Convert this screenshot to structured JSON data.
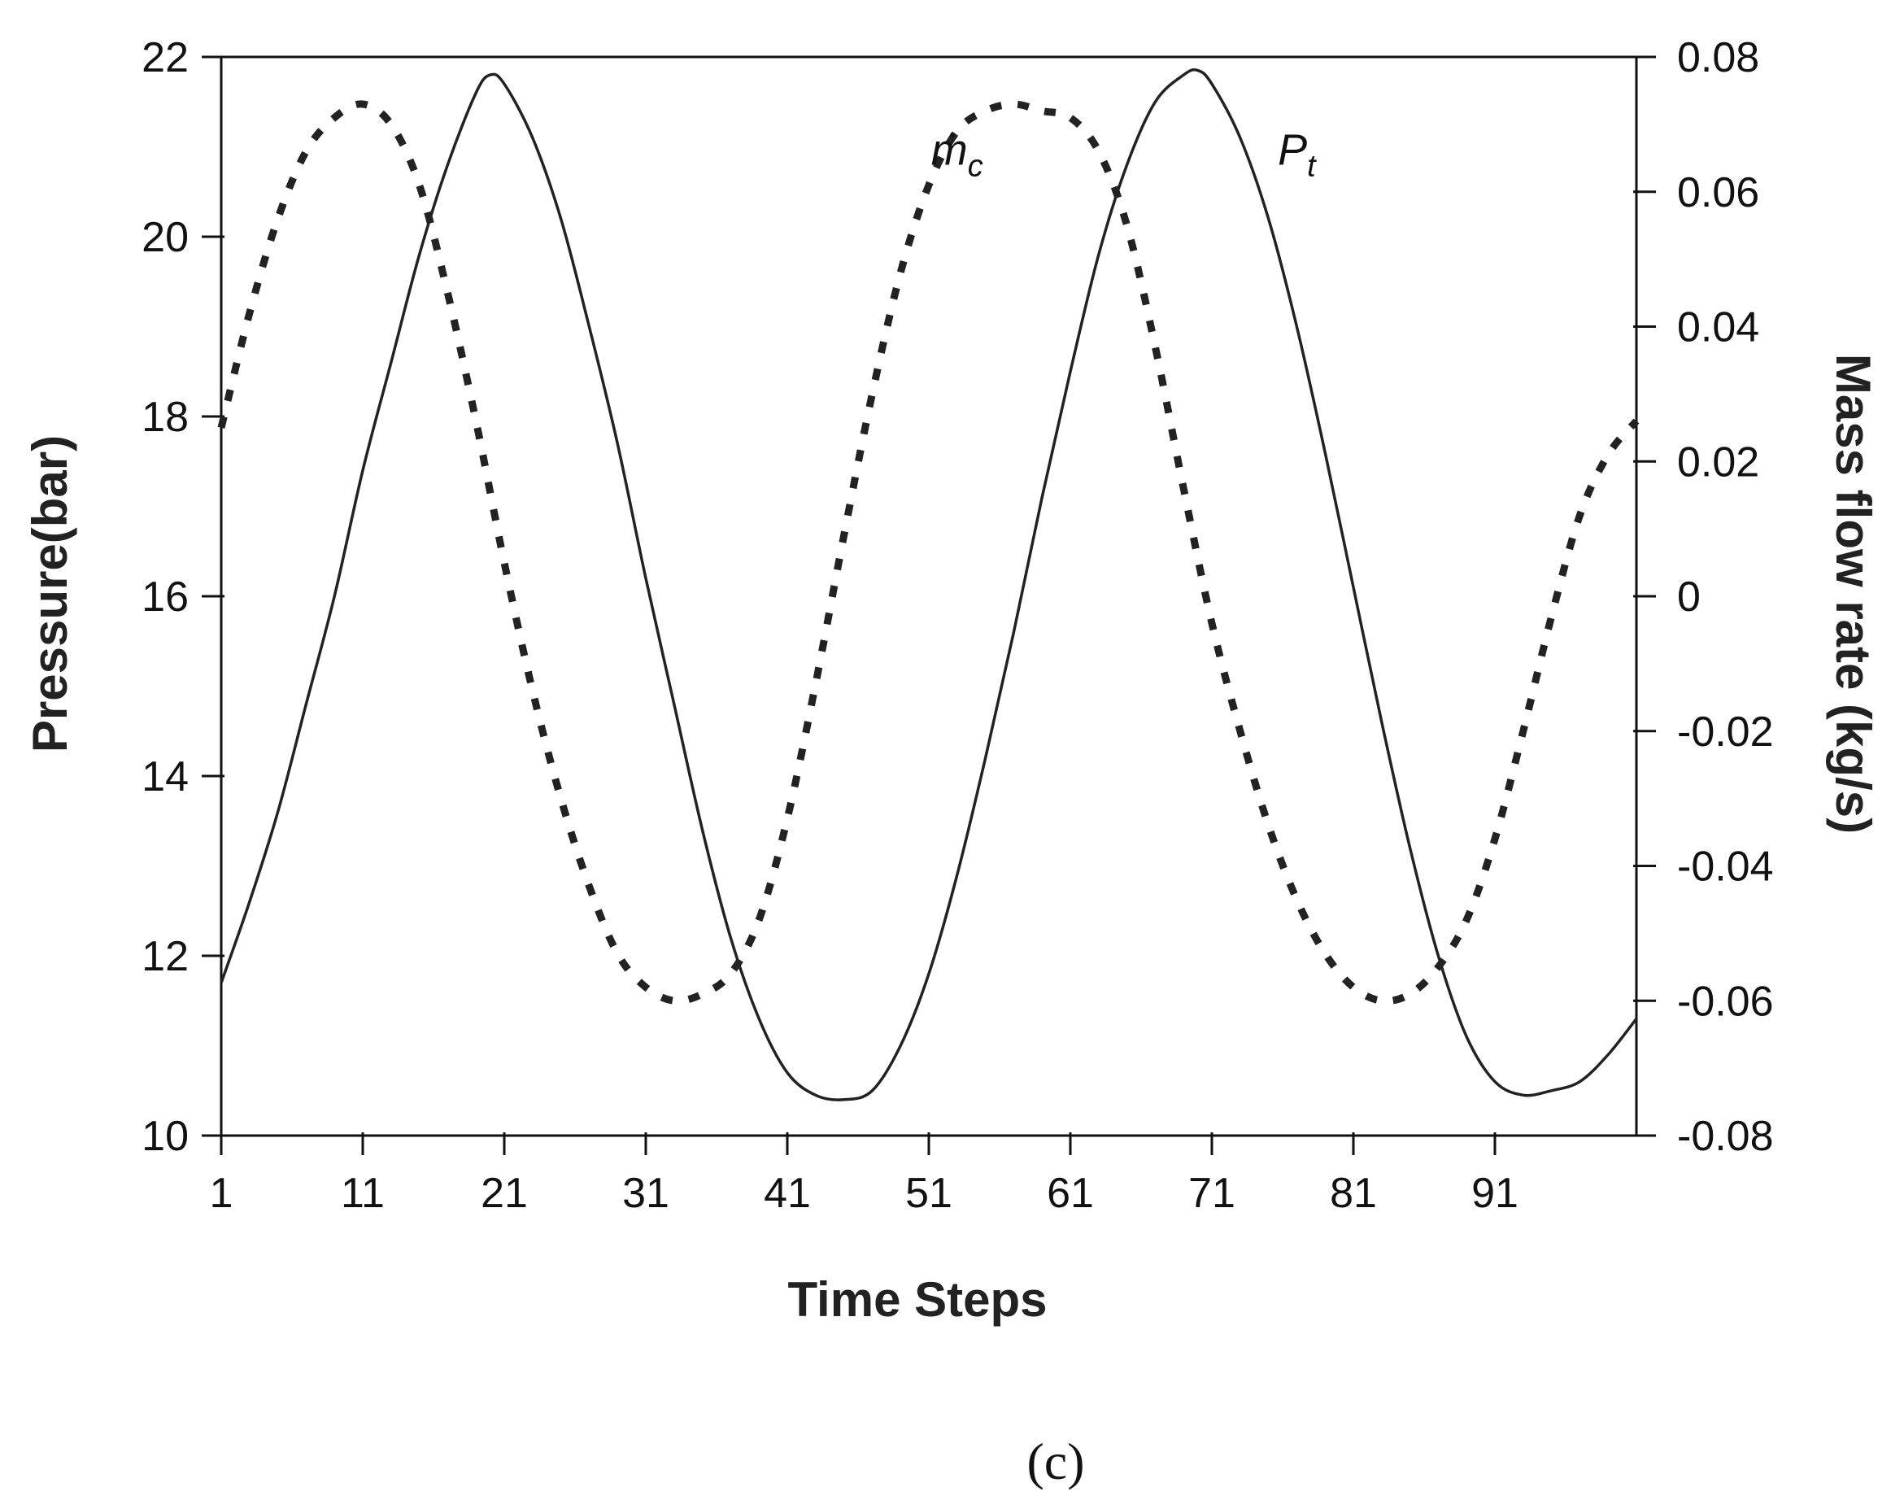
{
  "chart_data": {
    "type": "line",
    "caption": "(c)",
    "xlabel": "Time Steps",
    "ylabel_left": "Pressure(bar)",
    "ylabel_right": "Mass flow rate (kg/s)",
    "x_range": [
      1,
      101
    ],
    "x_ticks": [
      1,
      11,
      21,
      31,
      41,
      51,
      61,
      71,
      81,
      91
    ],
    "y_left_range": [
      10,
      22
    ],
    "y_left_ticks": [
      10,
      12,
      14,
      16,
      18,
      20,
      22
    ],
    "y_right_range": [
      -0.08,
      0.08
    ],
    "y_right_ticks": [
      {
        "value": -0.08,
        "label": "-0.08"
      },
      {
        "value": -0.06,
        "label": "-0.06"
      },
      {
        "value": -0.04,
        "label": "-0.04"
      },
      {
        "value": -0.02,
        "label": "-0.02"
      },
      {
        "value": 0,
        "label": "0"
      },
      {
        "value": 0.02,
        "label": "0.02"
      },
      {
        "value": 0.04,
        "label": "0.04"
      },
      {
        "value": 0.06,
        "label": "0.06"
      },
      {
        "value": 0.08,
        "label": "0.08"
      }
    ],
    "grid": false,
    "series": [
      {
        "name": "P_t",
        "axis": "left",
        "style": "solid",
        "color": "#222222",
        "x": [
          1,
          3,
          5,
          7,
          9,
          11,
          13,
          15,
          17,
          19,
          20,
          21,
          23,
          25,
          27,
          29,
          31,
          33,
          35,
          37,
          39,
          41,
          43,
          45,
          47,
          49,
          51,
          53,
          55,
          57,
          59,
          61,
          63,
          65,
          67,
          69,
          70,
          71,
          73,
          75,
          77,
          79,
          81,
          83,
          85,
          87,
          89,
          91,
          93,
          95,
          97,
          99,
          101
        ],
        "y": [
          11.7,
          12.6,
          13.6,
          14.8,
          16.0,
          17.4,
          18.6,
          19.8,
          20.8,
          21.6,
          21.8,
          21.7,
          21.1,
          20.2,
          19.0,
          17.7,
          16.2,
          14.8,
          13.4,
          12.2,
          11.3,
          10.7,
          10.45,
          10.4,
          10.5,
          11.0,
          11.8,
          12.9,
          14.2,
          15.6,
          17.1,
          18.5,
          19.8,
          20.8,
          21.5,
          21.8,
          21.85,
          21.7,
          21.1,
          20.2,
          19.0,
          17.6,
          16.1,
          14.6,
          13.2,
          12.0,
          11.1,
          10.6,
          10.45,
          10.5,
          10.6,
          10.9,
          11.3
        ]
      },
      {
        "name": "ṁ_c",
        "axis": "right",
        "style": "dashed",
        "color": "#222222",
        "x": [
          1,
          3,
          5,
          7,
          9,
          11,
          13,
          15,
          17,
          19,
          21,
          23,
          25,
          27,
          29,
          31,
          33,
          35,
          37,
          39,
          41,
          43,
          45,
          47,
          49,
          51,
          53,
          55,
          57,
          59,
          61,
          63,
          65,
          67,
          69,
          71,
          73,
          75,
          77,
          79,
          81,
          83,
          85,
          87,
          89,
          91,
          93,
          95,
          97,
          99,
          101
        ],
        "y": [
          0.025,
          0.042,
          0.056,
          0.066,
          0.071,
          0.073,
          0.07,
          0.061,
          0.045,
          0.026,
          0.005,
          -0.014,
          -0.03,
          -0.043,
          -0.053,
          -0.058,
          -0.06,
          -0.059,
          -0.056,
          -0.048,
          -0.033,
          -0.013,
          0.009,
          0.03,
          0.048,
          0.061,
          0.069,
          0.072,
          0.073,
          0.072,
          0.071,
          0.066,
          0.055,
          0.037,
          0.016,
          -0.004,
          -0.02,
          -0.034,
          -0.045,
          -0.053,
          -0.058,
          -0.06,
          -0.059,
          -0.055,
          -0.048,
          -0.036,
          -0.02,
          -0.003,
          0.012,
          0.021,
          0.026
        ]
      }
    ],
    "annotations": [
      {
        "text": "ṁc",
        "series": "ṁ_c",
        "x": 53,
        "y_left": 20.8
      },
      {
        "text": "Pt",
        "series": "P_t",
        "x": 77,
        "y_left": 20.8
      }
    ]
  }
}
